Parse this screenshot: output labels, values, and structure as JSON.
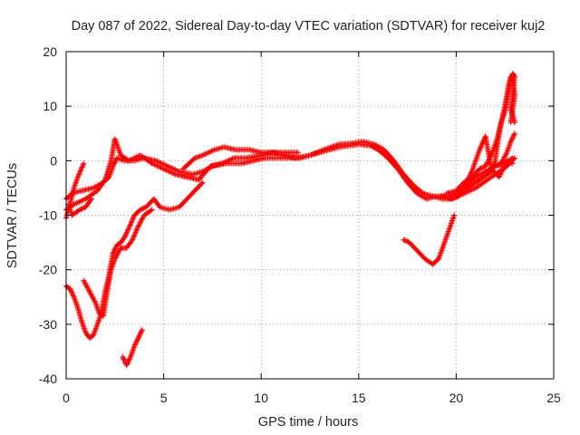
{
  "chart_data": {
    "type": "scatter",
    "title": "Day 087 of 2022, Sidereal Day-to-day VTEC variation (SDTVAR) for receiver kuj2",
    "xlabel": "GPS time / hours",
    "ylabel": "SDTVAR / TECUs",
    "xlim": [
      0,
      25
    ],
    "ylim": [
      -40,
      20
    ],
    "xticks": [
      0,
      5,
      10,
      15,
      20,
      25
    ],
    "yticks": [
      -40,
      -30,
      -20,
      -10,
      0,
      10,
      20
    ],
    "xtick_labels": [
      "0",
      "5",
      "10",
      "15",
      "20",
      "25"
    ],
    "ytick_labels": [
      "-40",
      "-30",
      "-20",
      "-10",
      "0",
      "10",
      "20"
    ],
    "grid": true,
    "marker": "+",
    "color": "#ff0000",
    "series": [
      {
        "points": [
          [
            0,
            -7
          ],
          [
            0.3,
            -6
          ],
          [
            0.8,
            -5.5
          ],
          [
            1.4,
            -5
          ],
          [
            1.9,
            -4
          ],
          [
            2.2,
            -3
          ],
          [
            2.4,
            -1
          ],
          [
            2.6,
            0.5
          ],
          [
            3,
            0
          ],
          [
            3.5,
            0
          ],
          [
            4,
            0.5
          ],
          [
            4.6,
            0
          ],
          [
            5.2,
            -1
          ],
          [
            5.8,
            -2
          ],
          [
            6.5,
            -2.5
          ],
          [
            7,
            -2
          ],
          [
            7.5,
            -1
          ],
          [
            8.2,
            -0.5
          ],
          [
            9,
            -0.5
          ],
          [
            9.6,
            0
          ],
          [
            10.2,
            0.5
          ],
          [
            11,
            0.5
          ],
          [
            12,
            0.5
          ],
          [
            13,
            1.5
          ],
          [
            14,
            2.5
          ],
          [
            15,
            3
          ],
          [
            15.6,
            2.8
          ],
          [
            16,
            2
          ],
          [
            16.5,
            0.5
          ],
          [
            17,
            -1.5
          ],
          [
            17.5,
            -4
          ],
          [
            18,
            -6
          ],
          [
            18.5,
            -7
          ],
          [
            19,
            -6.5
          ],
          [
            19.5,
            -6.5
          ],
          [
            20,
            -6
          ],
          [
            20.5,
            -4.5
          ],
          [
            21,
            -3
          ],
          [
            21.5,
            -2
          ],
          [
            22,
            -1
          ],
          [
            22.5,
            -0.5
          ],
          [
            22.9,
            0.5
          ]
        ]
      },
      {
        "points": [
          [
            0,
            -9
          ],
          [
            0.4,
            -8
          ],
          [
            1,
            -7
          ],
          [
            1.6,
            -5.5
          ],
          [
            2,
            -3.5
          ],
          [
            2.3,
            0
          ],
          [
            2.5,
            4
          ],
          [
            2.8,
            1
          ],
          [
            3.2,
            0
          ],
          [
            3.8,
            1
          ],
          [
            4.4,
            -0.5
          ],
          [
            5,
            -1.5
          ],
          [
            5.6,
            -2.5
          ],
          [
            6.2,
            -3
          ],
          [
            6.8,
            -3.5
          ],
          [
            7.4,
            -1
          ],
          [
            8,
            -0.5
          ],
          [
            8.6,
            0.5
          ],
          [
            9.2,
            0.5
          ],
          [
            10,
            1
          ],
          [
            10.6,
            1.5
          ],
          [
            11.2,
            1
          ],
          [
            11.8,
            0.5
          ],
          [
            12.5,
            1
          ],
          [
            13.2,
            2
          ],
          [
            14,
            3
          ],
          [
            14.7,
            3.2
          ],
          [
            15.2,
            3.5
          ],
          [
            15.8,
            3
          ],
          [
            16.3,
            2
          ],
          [
            16.8,
            0
          ],
          [
            17.3,
            -2.5
          ],
          [
            17.8,
            -4.5
          ],
          [
            18.3,
            -6
          ],
          [
            18.8,
            -6.5
          ],
          [
            19.3,
            -7
          ],
          [
            19.8,
            -7
          ],
          [
            20.3,
            -5.5
          ],
          [
            20.8,
            -2
          ],
          [
            21.2,
            2
          ],
          [
            21.5,
            4.5
          ],
          [
            21.8,
            -1.5
          ],
          [
            22.2,
            -3
          ],
          [
            22.6,
            0
          ],
          [
            22.9,
            -0.5
          ]
        ]
      },
      {
        "points": [
          [
            0,
            -10.5
          ],
          [
            0.2,
            -8
          ],
          [
            0.4,
            -5
          ],
          [
            0.6,
            -3
          ],
          [
            0.9,
            -0.5
          ]
        ]
      },
      {
        "points": [
          [
            0.1,
            -8
          ],
          [
            0.3,
            -10
          ],
          [
            0.7,
            -9
          ],
          [
            1,
            -8.5
          ],
          [
            1.3,
            -7
          ]
        ]
      },
      {
        "points": [
          [
            6,
            -1.5
          ],
          [
            6.6,
            0.5
          ],
          [
            7,
            1
          ],
          [
            7.6,
            2
          ],
          [
            8.1,
            2.5
          ],
          [
            8.7,
            2
          ],
          [
            9.4,
            2
          ],
          [
            10,
            1.5
          ],
          [
            10.7,
            1.5
          ],
          [
            11.4,
            1.5
          ],
          [
            11.9,
            1.5
          ]
        ]
      },
      {
        "points": [
          [
            0,
            -23
          ],
          [
            0.2,
            -23.5
          ],
          [
            0.4,
            -25
          ],
          [
            0.6,
            -27
          ],
          [
            0.8,
            -29.5
          ],
          [
            1,
            -31.5
          ],
          [
            1.2,
            -32.5
          ],
          [
            1.4,
            -32
          ],
          [
            1.6,
            -30
          ],
          [
            1.8,
            -28
          ],
          [
            2,
            -24
          ],
          [
            2.2,
            -21
          ],
          [
            2.4,
            -17
          ],
          [
            2.6,
            -15.5
          ],
          [
            2.8,
            -15
          ],
          [
            3,
            -14
          ],
          [
            3.2,
            -12.5
          ],
          [
            3.5,
            -10
          ],
          [
            3.8,
            -9
          ],
          [
            4.1,
            -8.5
          ],
          [
            4.5,
            -7
          ],
          [
            4.8,
            -8.5
          ],
          [
            5.3,
            -9
          ],
          [
            5.8,
            -8.5
          ],
          [
            6.2,
            -7
          ],
          [
            6.6,
            -5.5
          ],
          [
            7,
            -4
          ]
        ]
      },
      {
        "points": [
          [
            0.9,
            -22
          ],
          [
            1.2,
            -24
          ],
          [
            1.5,
            -26
          ],
          [
            1.7,
            -28
          ],
          [
            1.9,
            -28.5
          ],
          [
            2.1,
            -24
          ],
          [
            2.3,
            -20
          ],
          [
            2.5,
            -18
          ],
          [
            2.8,
            -16
          ],
          [
            3.1,
            -16
          ],
          [
            3.4,
            -14.5
          ],
          [
            3.7,
            -12
          ],
          [
            4,
            -10
          ],
          [
            4.4,
            -9
          ]
        ]
      },
      {
        "points": [
          [
            2.9,
            -36
          ],
          [
            3.1,
            -37.5
          ],
          [
            3.3,
            -36
          ],
          [
            3.5,
            -34
          ],
          [
            3.7,
            -32.5
          ],
          [
            3.9,
            -31
          ]
        ]
      },
      {
        "points": [
          [
            17.3,
            -14.5
          ],
          [
            17.6,
            -15
          ],
          [
            18,
            -16.5
          ],
          [
            18.4,
            -18
          ],
          [
            18.8,
            -19
          ],
          [
            19.1,
            -18
          ],
          [
            19.3,
            -16
          ],
          [
            19.5,
            -14
          ],
          [
            19.7,
            -12
          ],
          [
            19.9,
            -10
          ]
        ]
      },
      {
        "points": [
          [
            19.5,
            -6
          ],
          [
            20,
            -5.5
          ],
          [
            20.4,
            -4
          ],
          [
            20.8,
            -3
          ],
          [
            21.2,
            -1.5
          ],
          [
            21.5,
            -1
          ],
          [
            21.8,
            1
          ],
          [
            22.1,
            4
          ],
          [
            22.3,
            7
          ],
          [
            22.5,
            9
          ],
          [
            22.6,
            11
          ],
          [
            22.7,
            13
          ],
          [
            22.8,
            15
          ],
          [
            22.9,
            16
          ],
          [
            23,
            15.5
          ],
          [
            22.9,
            12
          ],
          [
            22.8,
            9.5
          ],
          [
            23,
            7
          ]
        ]
      },
      {
        "points": [
          [
            19.6,
            -7
          ],
          [
            20.1,
            -6.5
          ],
          [
            20.6,
            -5
          ],
          [
            21,
            -4
          ],
          [
            21.4,
            -3
          ],
          [
            21.8,
            -2
          ],
          [
            22,
            0
          ],
          [
            22.2,
            5
          ],
          [
            22.4,
            8.5
          ],
          [
            22.5,
            10
          ],
          [
            22.6,
            12
          ],
          [
            22.7,
            14
          ],
          [
            22.8,
            15.5
          ],
          [
            22.9,
            14.5
          ],
          [
            23,
            12
          ],
          [
            22.8,
            7
          ]
        ]
      },
      {
        "points": [
          [
            22,
            -1
          ],
          [
            22.3,
            -0.5
          ],
          [
            22.6,
            1.5
          ],
          [
            22.8,
            3.5
          ],
          [
            23,
            5
          ]
        ]
      },
      {
        "points": [
          [
            19.2,
            -6.5
          ],
          [
            19.8,
            -7
          ],
          [
            20.4,
            -6
          ],
          [
            21,
            -5
          ],
          [
            21.6,
            -3.5
          ],
          [
            22.2,
            -2
          ],
          [
            22.6,
            -1
          ],
          [
            23,
            0.5
          ]
        ]
      }
    ]
  }
}
